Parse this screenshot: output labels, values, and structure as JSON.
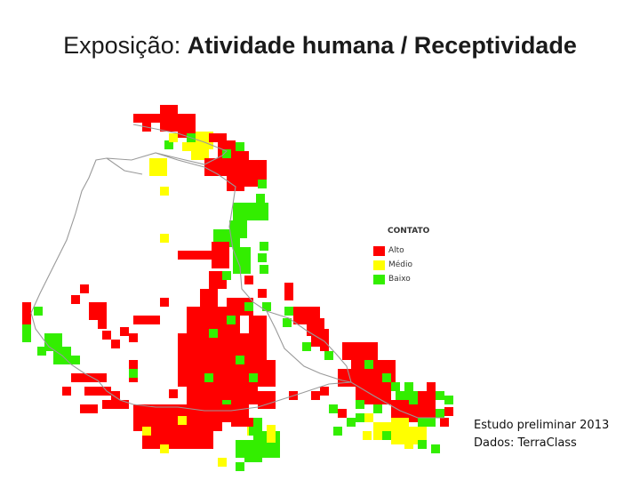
{
  "title": {
    "prefix": "Exposição: ",
    "bold": "Atividade humana / Receptividade"
  },
  "legend": {
    "title": "CONTATO",
    "items": [
      {
        "label": "Alto",
        "color": "#ff0000"
      },
      {
        "label": "Médio",
        "color": "#ffff00"
      },
      {
        "label": "Baixo",
        "color": "#33ee00"
      }
    ]
  },
  "credits": {
    "line1": "Estudo preliminar 2013",
    "line2": "Dados: TerraClass"
  },
  "colors": {
    "alto": "#ff0000",
    "medio": "#ffff00",
    "baixo": "#33ee00",
    "border": "#9a9a9a"
  }
}
